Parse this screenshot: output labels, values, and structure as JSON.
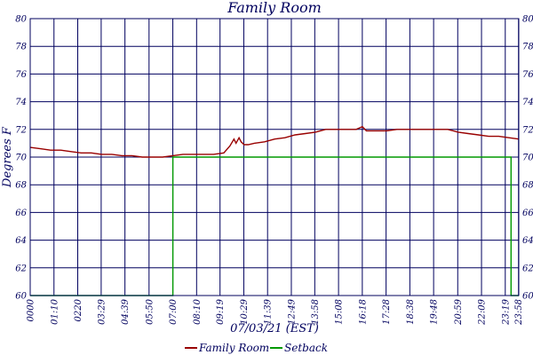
{
  "chart_data": {
    "type": "line",
    "title": "Family Room",
    "xlabel": "07/03/21 (EST)",
    "ylabel": "Degrees F",
    "ylim": [
      60,
      80
    ],
    "yticks": [
      "60",
      "62",
      "64",
      "66",
      "68",
      "70",
      "72",
      "74",
      "76",
      "78",
      "80"
    ],
    "xlim_hours": [
      0,
      23.98
    ],
    "xtick_labels": [
      "0000",
      "01:10",
      "0220",
      "03:29",
      "04:39",
      "05:50",
      "07:00",
      "08:10",
      "09:19",
      "10:29",
      "11:39",
      "12:49",
      "13:58",
      "15:08",
      "16:18",
      "17:28",
      "18:38",
      "19:48",
      "20:59",
      "22:09",
      "23:19",
      "23:58"
    ],
    "grid": true,
    "legend_position": "bottom-center",
    "colors": {
      "family_room": "#990000",
      "setback": "#009900",
      "grid": "#00005e",
      "text": "#00005e"
    },
    "series": [
      {
        "name": "Family Room",
        "color": "#990000",
        "x_hours": [
          0,
          0.5,
          1.0,
          1.5,
          2.0,
          2.5,
          3.0,
          3.5,
          4.0,
          4.5,
          5.0,
          5.5,
          6.0,
          6.5,
          7.0,
          7.5,
          8.0,
          8.5,
          9.0,
          9.5,
          9.8,
          10.0,
          10.1,
          10.25,
          10.35,
          10.5,
          10.7,
          11.0,
          11.5,
          12.0,
          12.5,
          13.0,
          13.5,
          14.0,
          14.5,
          15.0,
          15.5,
          16.0,
          16.3,
          16.5,
          17.0,
          17.5,
          18.0,
          18.5,
          19.0,
          19.5,
          20.0,
          20.5,
          21.0,
          21.5,
          22.0,
          22.5,
          23.0,
          23.5,
          23.98
        ],
        "y": [
          70.7,
          70.6,
          70.5,
          70.5,
          70.4,
          70.3,
          70.3,
          70.2,
          70.2,
          70.1,
          70.1,
          70.0,
          70.0,
          70.0,
          70.1,
          70.2,
          70.2,
          70.2,
          70.2,
          70.3,
          70.8,
          71.3,
          71.0,
          71.4,
          71.1,
          70.9,
          70.9,
          71.0,
          71.1,
          71.3,
          71.4,
          71.6,
          71.7,
          71.8,
          72.0,
          72.0,
          72.0,
          72.0,
          72.2,
          71.9,
          71.9,
          71.9,
          72.0,
          72.0,
          72.0,
          72.0,
          72.0,
          72.0,
          71.8,
          71.7,
          71.6,
          71.5,
          71.5,
          71.4,
          71.3
        ]
      },
      {
        "name": "Setback",
        "color": "#009900",
        "x_hours": [
          0,
          7.0,
          7.0,
          23.6,
          23.6,
          23.98
        ],
        "y": [
          60,
          60,
          70,
          70,
          60,
          60
        ]
      }
    ]
  }
}
